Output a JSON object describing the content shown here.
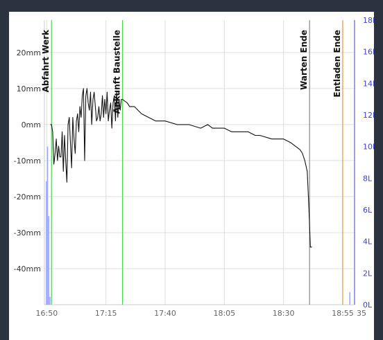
{
  "chart_data": {
    "type": "line",
    "title": "",
    "xlabel": "",
    "ylabel": "",
    "x_ticks": [
      "16:50",
      "17:15",
      "17:40",
      "18:05",
      "18:30",
      "18:55"
    ],
    "x_extra_label": "35",
    "xlim": [
      "16:49",
      "19:00"
    ],
    "y_left": {
      "ticks": [
        "20mm",
        "10mm",
        "0mm",
        "-10mm",
        "-20mm",
        "-30mm",
        "-40mm"
      ],
      "tick_values": [
        20,
        10,
        0,
        -10,
        -20,
        -30,
        -40
      ],
      "ylim": [
        -50,
        29
      ]
    },
    "y_right": {
      "ticks": [
        "18L",
        "16L",
        "14L",
        "12L",
        "10L",
        "8L",
        "6L",
        "4L",
        "2L",
        "0L"
      ],
      "tick_values": [
        18,
        16,
        14,
        12,
        10,
        8,
        6,
        4,
        2,
        0
      ],
      "ylim": [
        0,
        18
      ]
    },
    "grid": true,
    "markers": [
      {
        "label": "Abfahrt Werk",
        "time": "16:52",
        "color": "#4bd34b"
      },
      {
        "label": "Ankunft Baustelle",
        "time": "17:22",
        "color": "#4bd34b"
      },
      {
        "label": "Warten Ende",
        "time": "18:41",
        "color": "#888888"
      },
      {
        "label": "Entladen Ende",
        "time": "18:55",
        "color": "#e0a020"
      }
    ],
    "series": [
      {
        "axis": "left",
        "color": "#111111",
        "x": [
          "16:51:30",
          "16:52:00",
          "16:52:30",
          "16:53:00",
          "16:53:30",
          "16:54:00",
          "16:54:30",
          "16:55:00",
          "16:55:30",
          "16:56:00",
          "16:56:30",
          "16:57:00",
          "16:57:30",
          "16:58:00",
          "16:58:30",
          "16:59:00",
          "16:59:30",
          "17:00:00",
          "17:00:30",
          "17:01:00",
          "17:01:30",
          "17:02:00",
          "17:02:30",
          "17:03:00",
          "17:03:30",
          "17:04:00",
          "17:04:30",
          "17:05:00",
          "17:05:30",
          "17:06:00",
          "17:06:30",
          "17:07:00",
          "17:07:30",
          "17:08:00",
          "17:08:30",
          "17:09:00",
          "17:09:30",
          "17:10:00",
          "17:10:30",
          "17:11:00",
          "17:11:30",
          "17:12:00",
          "17:12:30",
          "17:13:00",
          "17:13:30",
          "17:14:00",
          "17:14:30",
          "17:15:00",
          "17:15:30",
          "17:16:00",
          "17:16:30",
          "17:17:00",
          "17:17:30",
          "17:18:00",
          "17:18:30",
          "17:19:00",
          "17:19:30",
          "17:20:00",
          "17:20:30",
          "17:21:00",
          "17:21:30",
          "17:22:00",
          "17:24:00",
          "17:25:00",
          "17:27:00",
          "17:30:00",
          "17:33:00",
          "17:36:00",
          "17:40:00",
          "17:45:00",
          "17:50:00",
          "17:55:00",
          "17:58:00",
          "18:00:00",
          "18:05:00",
          "18:08:00",
          "18:10:00",
          "18:15:00",
          "18:18:00",
          "18:20:00",
          "18:25:00",
          "18:30:00",
          "18:33:00",
          "18:35:00",
          "18:37:00",
          "18:38:00",
          "18:39:00",
          "18:40:00",
          "18:40:30",
          "18:41:00",
          "18:41:20",
          "18:41:40",
          "18:42:00"
        ],
        "y": [
          0,
          0,
          -2,
          -11,
          -8,
          -4,
          -10,
          -6,
          -9,
          -9,
          -2,
          -13,
          -3,
          -10,
          -16,
          0,
          2,
          -5,
          -12,
          2,
          -4,
          -8,
          1,
          3,
          -2,
          5,
          2,
          8,
          10,
          -10,
          8,
          10,
          6,
          4,
          9,
          0,
          7,
          9,
          5,
          1,
          2,
          5,
          1,
          3,
          8,
          2,
          7,
          3,
          9,
          1,
          4,
          6,
          -1,
          6,
          8,
          1,
          9,
          2,
          7,
          4,
          7,
          7,
          6,
          5,
          5,
          3,
          2,
          1,
          1,
          0,
          0,
          -1,
          0,
          -1,
          -1,
          -2,
          -2,
          -2,
          -3,
          -3,
          -4,
          -4,
          -5,
          -6,
          -7,
          -8,
          -10,
          -13,
          -20,
          -28,
          -34,
          -34,
          -34
        ]
      },
      {
        "axis": "right",
        "color": "#9aa8f5",
        "type": "bar",
        "x": [
          "16:49:50",
          "16:50:20",
          "16:50:50",
          "16:51:20",
          "18:58:00"
        ],
        "y": [
          7.8,
          10.0,
          5.6,
          0.5,
          0.8
        ]
      }
    ]
  }
}
